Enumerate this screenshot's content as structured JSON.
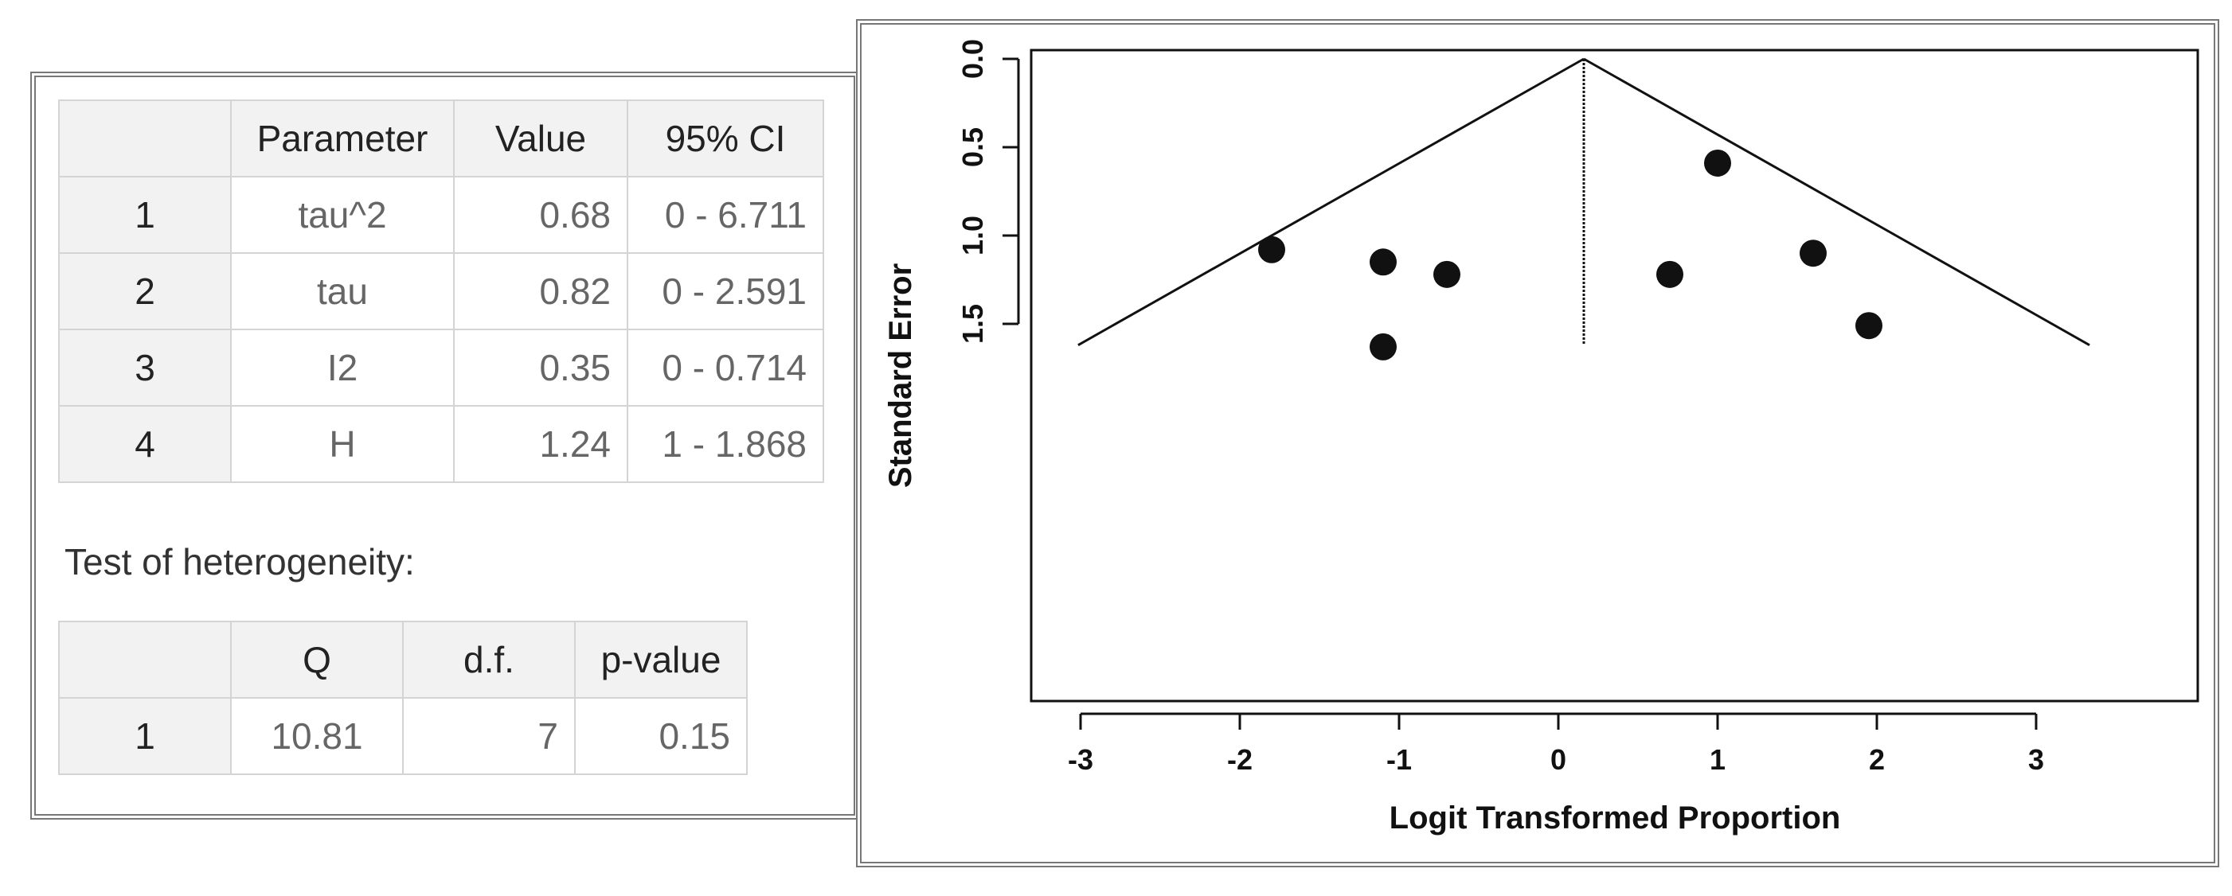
{
  "parameters_table": {
    "headers": [
      "",
      "Parameter",
      "Value",
      "95% CI"
    ],
    "rows": [
      {
        "idx": "1",
        "param": "tau^2",
        "value": "0.68",
        "ci": "0 - 6.711"
      },
      {
        "idx": "2",
        "param": "tau",
        "value": "0.82",
        "ci": "0 - 2.591"
      },
      {
        "idx": "3",
        "param": "I2",
        "value": "0.35",
        "ci": "0 - 0.714"
      },
      {
        "idx": "4",
        "param": "H",
        "value": "1.24",
        "ci": "1 - 1.868"
      }
    ]
  },
  "heterogeneity": {
    "title": "Test of heterogeneity:",
    "headers": [
      "",
      "Q",
      "d.f.",
      "p-value"
    ],
    "rows": [
      {
        "idx": "1",
        "q": "10.81",
        "df": "7",
        "p": "0.15"
      }
    ]
  },
  "chart_data": {
    "type": "scatter",
    "title": "",
    "xlabel": "Logit Transformed Proportion",
    "ylabel": "Standard Error",
    "xlim": [
      -3.0,
      3.5
    ],
    "ylim": [
      0.0,
      1.7
    ],
    "y_reversed": true,
    "x_ticks": [
      "-3",
      "-2",
      "-1",
      "0",
      "1",
      "2",
      "3"
    ],
    "y_ticks": [
      "0.0",
      "0.5",
      "1.0",
      "1.5"
    ],
    "funnel": {
      "center": 0.16,
      "max_se": 1.62,
      "z": 1.96
    },
    "points": [
      {
        "x": 1.0,
        "y": 0.59
      },
      {
        "x": -1.8,
        "y": 1.08
      },
      {
        "x": -1.1,
        "y": 1.15
      },
      {
        "x": -0.7,
        "y": 1.22
      },
      {
        "x": 0.7,
        "y": 1.22
      },
      {
        "x": 1.6,
        "y": 1.1
      },
      {
        "x": 1.95,
        "y": 1.51
      },
      {
        "x": -1.1,
        "y": 1.63
      }
    ],
    "colors": {
      "points": "#111111",
      "lines": "#111111"
    },
    "grid": false,
    "legend": "none"
  }
}
